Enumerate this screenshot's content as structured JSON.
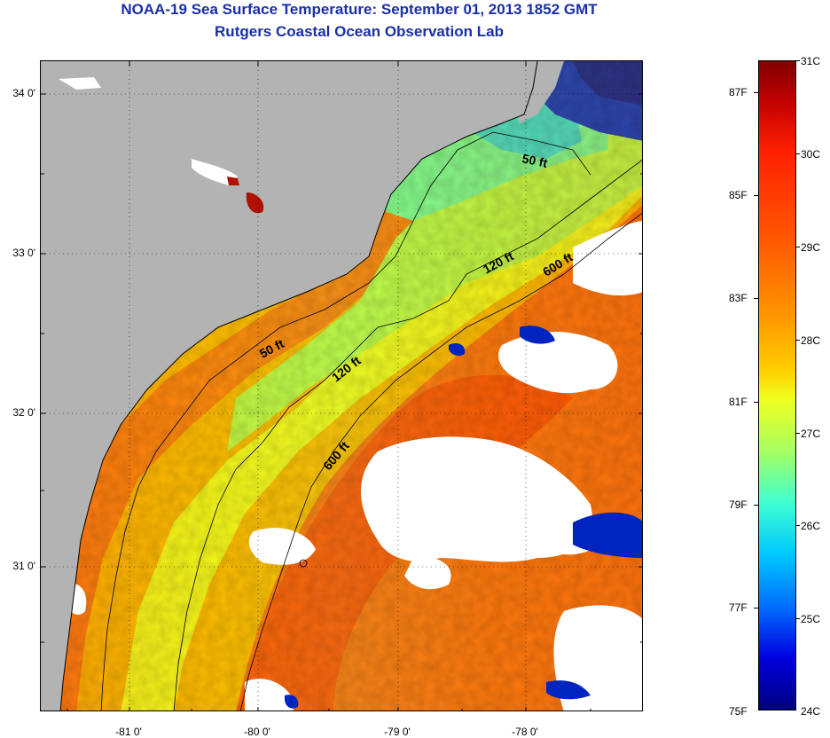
{
  "header": {
    "title": "NOAA-19 Sea Surface Temperature:  September 01, 2013 1852 GMT",
    "subtitle": "Rutgers Coastal Ocean Observation Lab"
  },
  "map": {
    "lat_ticks": [
      "34 0'",
      "33 0'",
      "32 0'",
      "31 0'"
    ],
    "lon_ticks": [
      "-81 0'",
      "-80 0'",
      "-79 0'",
      "-78 0'"
    ],
    "contour_labels": [
      "50 ft",
      "50 ft",
      "120 ft",
      "120 ft",
      "600 ft",
      "600 ft"
    ],
    "land_color": "#b3b3b3",
    "cloud_color": "#ffffff"
  },
  "colorbar": {
    "celsius_labels": [
      "31C",
      "30C",
      "29C",
      "28C",
      "27C",
      "26C",
      "25C",
      "24C"
    ],
    "fahrenheit_labels": [
      "87F",
      "85F",
      "83F",
      "81F",
      "79F",
      "77F",
      "75F"
    ],
    "range_c": [
      24,
      31
    ]
  }
}
